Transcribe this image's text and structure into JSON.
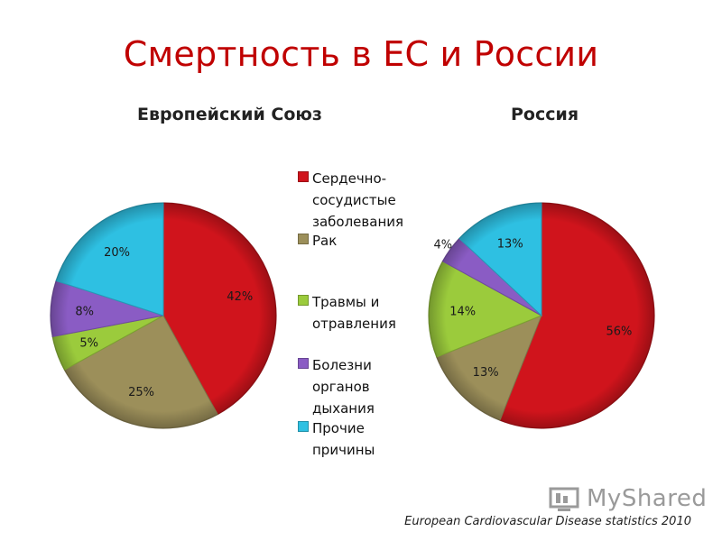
{
  "title": "Смертность в ЕС и России",
  "source": "European Cardiovascular Disease statistics 2010",
  "watermark": "MyShared",
  "legend": [
    {
      "label": "Сердечно-сосудистые заболевания",
      "color": "#d0141c"
    },
    {
      "label": "Рак",
      "color": "#9c8f5a"
    },
    {
      "label": "Травмы и отравления",
      "color": "#9bcb3c"
    },
    {
      "label": "Болезни органов дыхания",
      "color": "#8a5cc4"
    },
    {
      "label": "Прочие причины",
      "color": "#2ec0e2"
    }
  ],
  "chart_data": [
    {
      "type": "pie",
      "title": "Европейский Союз",
      "categories": [
        "Сердечно-сосудистые заболевания",
        "Рак",
        "Травмы и отравления",
        "Болезни органов дыхания",
        "Прочие причины"
      ],
      "values": [
        42,
        25,
        5,
        8,
        20
      ],
      "labels": [
        "42%",
        "25%",
        "5%",
        "8%",
        "20%"
      ],
      "colors": [
        "#d0141c",
        "#9c8f5a",
        "#9bcb3c",
        "#8a5cc4",
        "#2ec0e2"
      ]
    },
    {
      "type": "pie",
      "title": "Россия",
      "categories": [
        "Сердечно-сосудистые заболевания",
        "Рак",
        "Травмы и отравления",
        "Болезни органов дыхания",
        "Прочие причины"
      ],
      "values": [
        56,
        13,
        14,
        4,
        13
      ],
      "labels": [
        "56%",
        "13%",
        "14%",
        "4%",
        "13%"
      ],
      "colors": [
        "#d0141c",
        "#9c8f5a",
        "#9bcb3c",
        "#8a5cc4",
        "#2ec0e2"
      ]
    }
  ]
}
